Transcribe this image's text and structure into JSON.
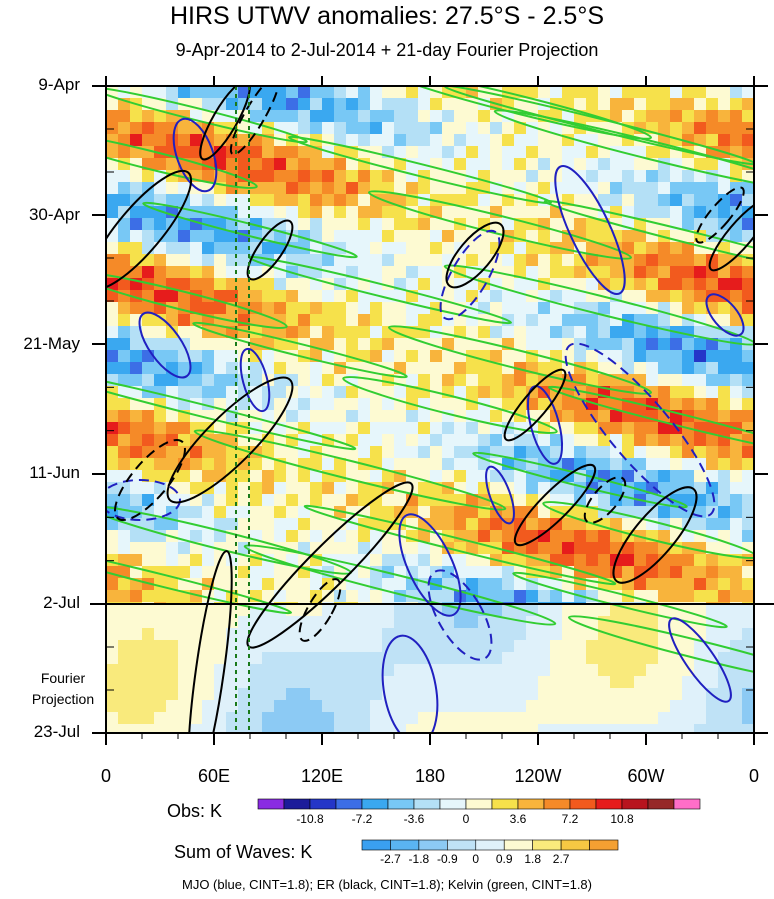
{
  "chart_data": {
    "type": "heatmap",
    "title": "HIRS UTWV anomalies: 27.5°S - 2.5°S",
    "subtitle": "9-Apr-2014 to 2-Jul-2014 + 21-day Fourier Projection",
    "x_ticks": [
      "0",
      "60E",
      "120E",
      "180",
      "120W",
      "60W",
      "0"
    ],
    "y_ticks": [
      "9-Apr",
      "30-Apr",
      "21-May",
      "11-Jun",
      "2-Jul",
      "23-Jul"
    ],
    "projection_label": "Fourier Projection",
    "obs_colorbar": {
      "title": "Obs: K",
      "levels": [
        "-10.8",
        "-7.2",
        "-3.6",
        "0",
        "3.6",
        "7.2",
        "10.8"
      ],
      "colors": [
        "#8a2be2",
        "#1c1c9a",
        "#2436c8",
        "#3c6ee6",
        "#3aa8f0",
        "#78c8f5",
        "#b4e0f6",
        "#e6f6fb",
        "#fdfad2",
        "#f6e14b",
        "#f8b43c",
        "#f58a28",
        "#f25a1e",
        "#e61c1c",
        "#b8141e",
        "#962828",
        "#ff6ec8"
      ]
    },
    "waves_colorbar": {
      "title": "Sum of Waves: K",
      "levels": [
        "-2.7",
        "-1.8",
        "-0.9",
        "0",
        "0.9",
        "1.8",
        "2.7"
      ],
      "colors": [
        "#3aa0f0",
        "#5ab4f2",
        "#8ccaf4",
        "#bfe2f6",
        "#dff1fa",
        "#fdfad2",
        "#f9ea7c",
        "#f6c843",
        "#f4a032"
      ]
    },
    "contours": [
      {
        "name": "MJO",
        "color": "#2020c0"
      },
      {
        "name": "ER",
        "color": "#000000"
      },
      {
        "name": "Kelvin",
        "color": "#32cd32"
      }
    ],
    "footer": "MJO (blue, CINT=1.8); ER (black, CINT=1.8); Kelvin (green, CINT=1.8)"
  }
}
